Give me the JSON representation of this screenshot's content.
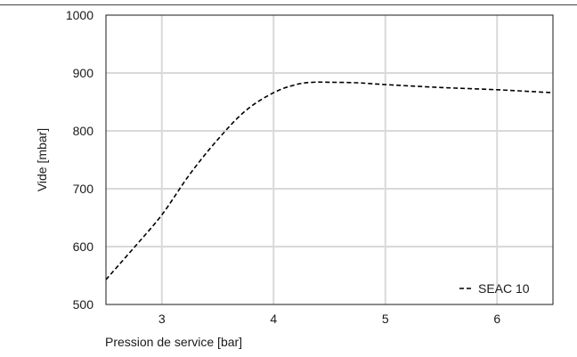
{
  "chart_data": {
    "type": "line",
    "title": "",
    "xlabel": "Pression de service [bar]",
    "ylabel": "Vide [mbar]",
    "xlim": [
      2.5,
      6.5
    ],
    "ylim": [
      500,
      1000
    ],
    "xticks": [
      3,
      4,
      5,
      6
    ],
    "yticks": [
      500,
      600,
      700,
      800,
      900,
      1000
    ],
    "grid": true,
    "legend_position": "bottom-right",
    "series": [
      {
        "name": "SEAC 10",
        "line_style": "dashed",
        "color": "#000000",
        "x": [
          2.5,
          2.75,
          3.0,
          3.25,
          3.5,
          3.75,
          4.0,
          4.2,
          4.35,
          4.5,
          4.75,
          5.0,
          5.5,
          6.0,
          6.5
        ],
        "y": [
          543,
          598,
          655,
          725,
          785,
          835,
          866,
          880,
          884,
          884,
          883,
          880,
          875,
          871,
          866
        ]
      }
    ]
  },
  "colors": {
    "grid": "#d9d9d9",
    "frame": "#1a1a1a",
    "line": "#000000"
  }
}
